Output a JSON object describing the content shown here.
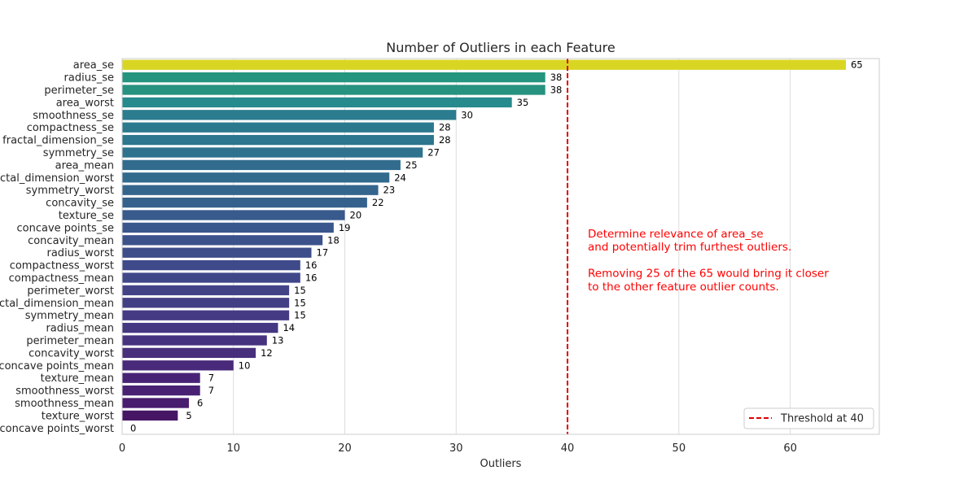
{
  "chart_data": {
    "type": "bar",
    "orientation": "horizontal",
    "title": "Number of Outliers in each Feature",
    "xlabel": "Outliers",
    "ylabel": "",
    "xlim": [
      0,
      68
    ],
    "xticks": [
      0,
      10,
      20,
      30,
      40,
      50,
      60
    ],
    "grid": true,
    "categories": [
      "area_se",
      "radius_se",
      "perimeter_se",
      "area_worst",
      "smoothness_se",
      "compactness_se",
      "fractal_dimension_se",
      "symmetry_se",
      "area_mean",
      "fractal_dimension_worst",
      "symmetry_worst",
      "concavity_se",
      "texture_se",
      "concave points_se",
      "concavity_mean",
      "radius_worst",
      "compactness_worst",
      "compactness_mean",
      "perimeter_worst",
      "fractal_dimension_mean",
      "symmetry_mean",
      "radius_mean",
      "perimeter_mean",
      "concavity_worst",
      "concave points_mean",
      "texture_mean",
      "smoothness_worst",
      "smoothness_mean",
      "texture_worst",
      "concave points_worst"
    ],
    "values": [
      65,
      38,
      38,
      35,
      30,
      28,
      28,
      27,
      25,
      24,
      23,
      22,
      20,
      19,
      18,
      17,
      16,
      16,
      15,
      15,
      15,
      14,
      13,
      12,
      10,
      7,
      7,
      6,
      5,
      0
    ],
    "colors": [
      "#d9d623",
      "#25957f",
      "#26927f",
      "#278a8d",
      "#2b7c8e",
      "#2c798e",
      "#2c768e",
      "#2f728e",
      "#316c8e",
      "#326a8e",
      "#34658d",
      "#35628d",
      "#385a8c",
      "#39578c",
      "#3b528b",
      "#3d4e8a",
      "#3f4a8a",
      "#404789",
      "#424387",
      "#433f85",
      "#453b84",
      "#453782",
      "#46337f",
      "#472f7c",
      "#48297a",
      "#482375",
      "#482173",
      "#481c6e",
      "#461664",
      "#440154"
    ],
    "threshold": {
      "value": 40,
      "color": "#e00000",
      "label": "Threshold at 40"
    },
    "legend_position": "lower-right",
    "annotation": {
      "color": "#ff0000",
      "lines": [
        "Determine relevance of area_se",
        "and potentially trim furthest outliers.",
        "",
        "Removing 25 of the 65 would bring it closer",
        "to the other feature outlier counts."
      ]
    }
  }
}
